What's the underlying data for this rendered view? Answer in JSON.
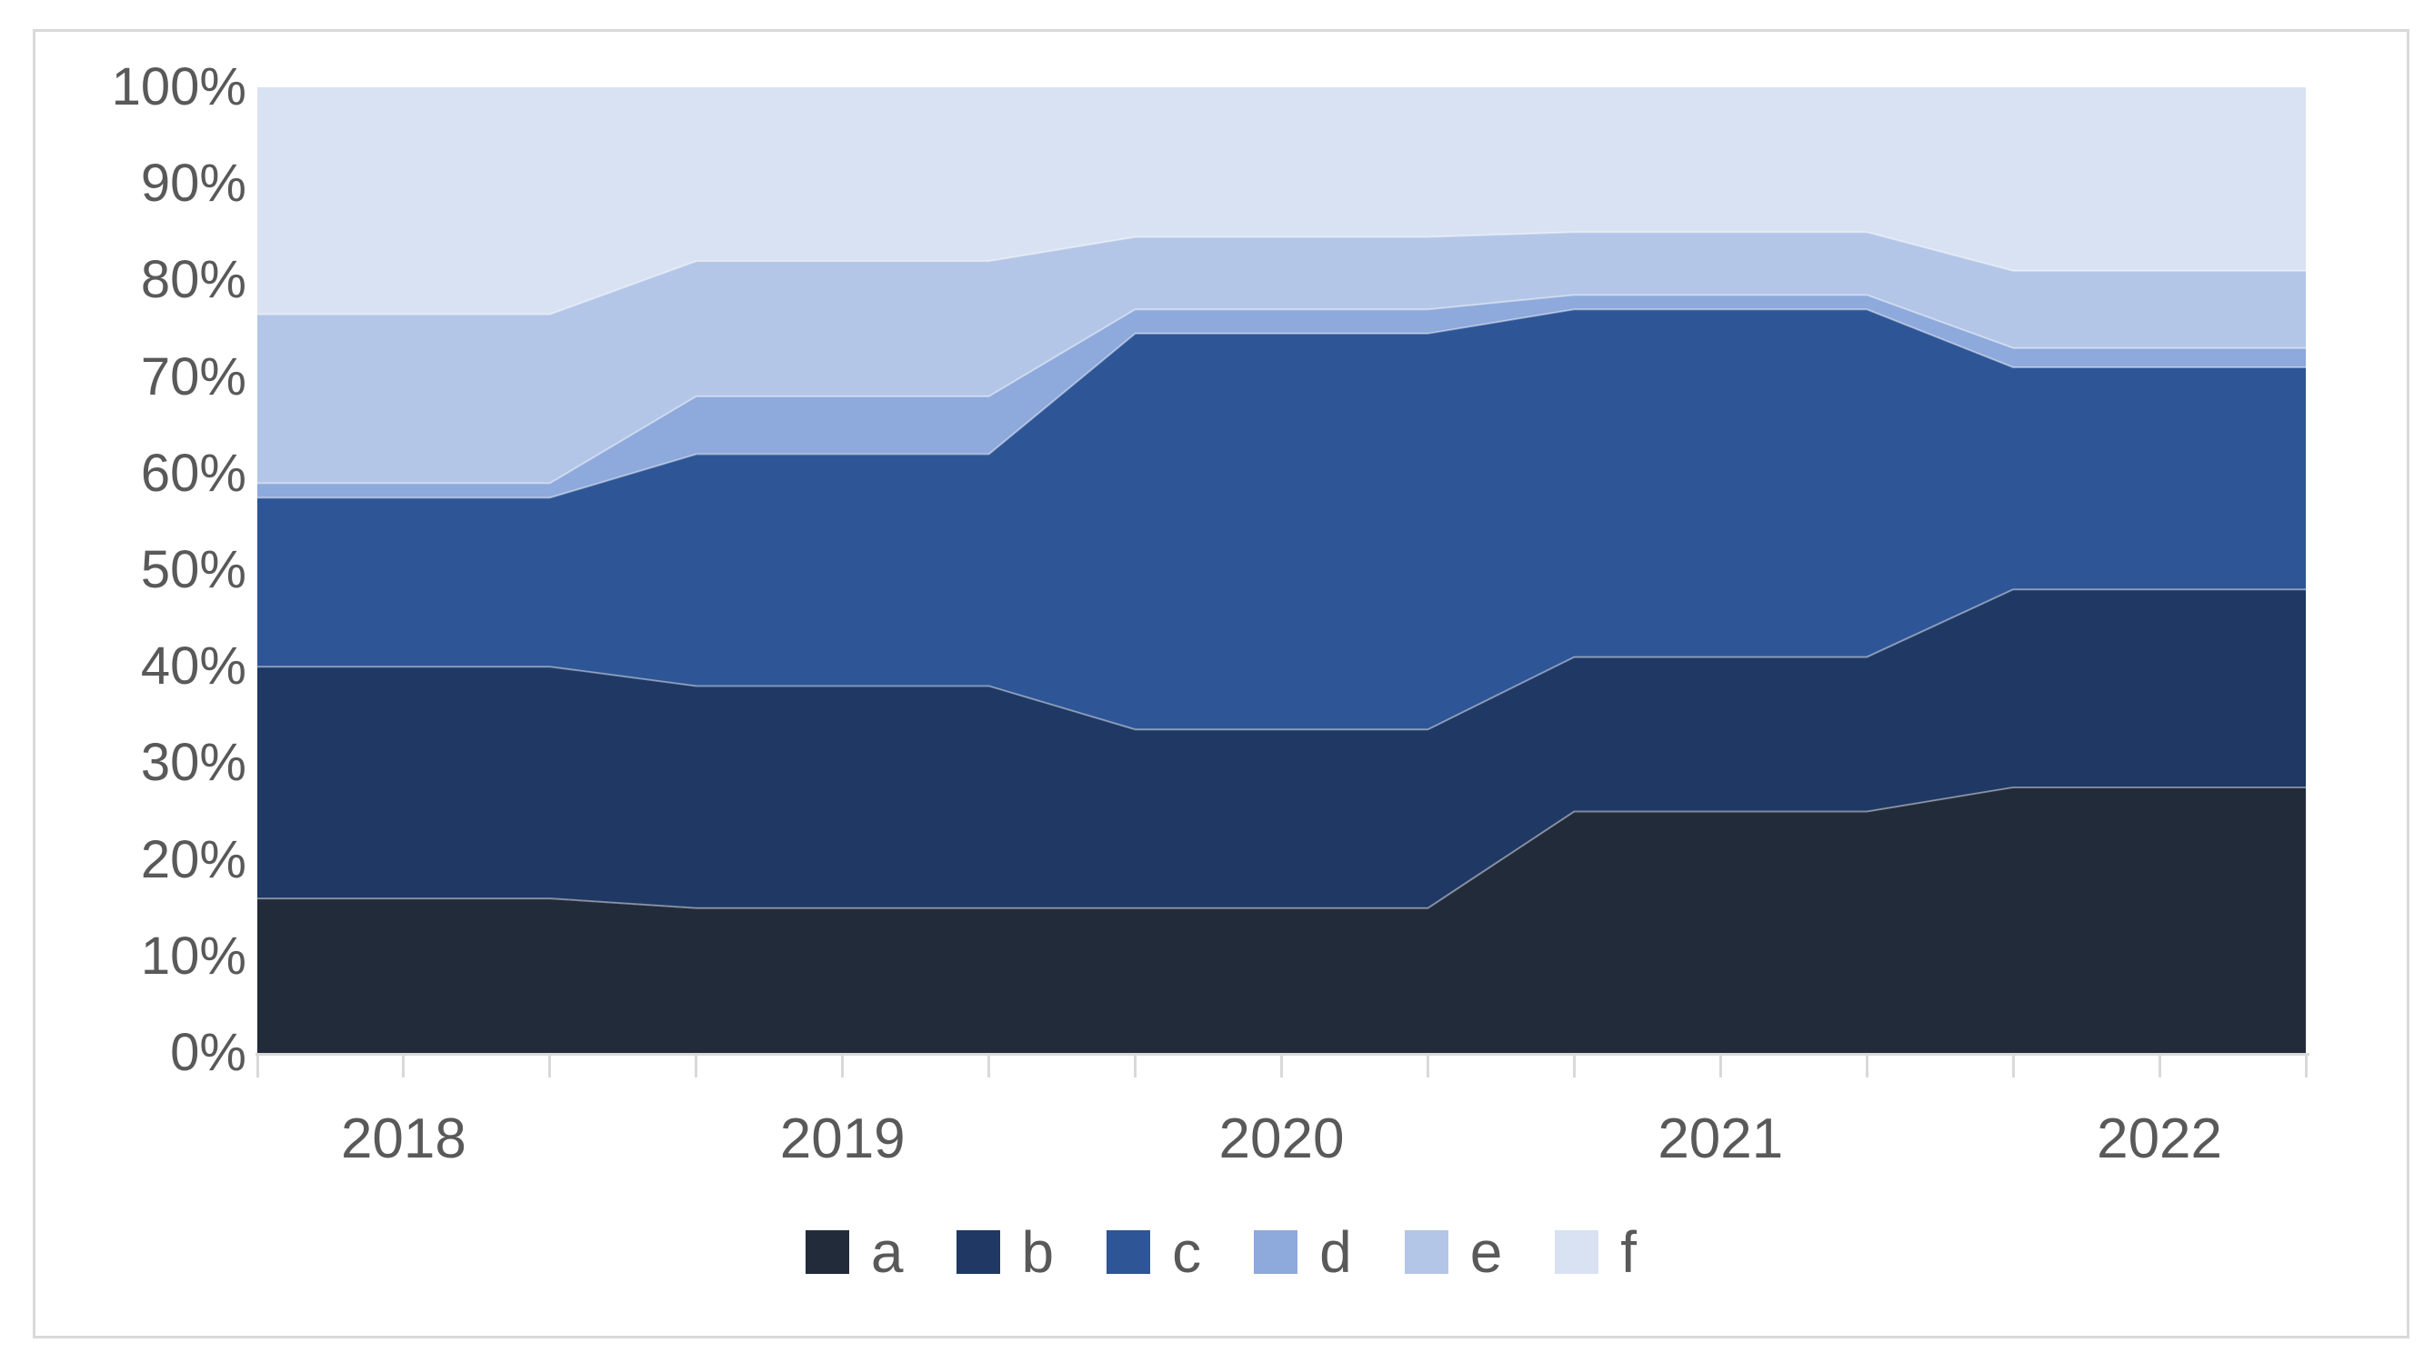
{
  "page": {
    "background": "#ffffff",
    "chart_border_color": "#D9D9D9"
  },
  "chart_data": {
    "type": "area",
    "stacking": "percent",
    "title": "",
    "grid": "off",
    "legend_position": "bottom",
    "x_axis": {
      "years": [
        "2018",
        "2019",
        "2020",
        "2021",
        "2022"
      ],
      "points_per_year": 3,
      "total_points": 15,
      "year_label_point_indices": [
        1,
        4,
        7,
        10,
        13
      ],
      "tick_color": "#D9D9D9",
      "label_color": "#595959"
    },
    "y_axis": {
      "min": 0,
      "max": 100,
      "tick_labels": [
        "100%",
        "90%",
        "80%",
        "70%",
        "60%",
        "50%",
        "40%",
        "30%",
        "20%",
        "10%",
        "0%"
      ],
      "label_color": "#595959"
    },
    "series": [
      {
        "name": "a",
        "color": "#222B3A",
        "values_pct": [
          16,
          16,
          16,
          15,
          15,
          15,
          15,
          15,
          15,
          25,
          25,
          25,
          27.5,
          27.5,
          27.5
        ]
      },
      {
        "name": "b",
        "color": "#1F3864",
        "values_pct": [
          24,
          24,
          24,
          23,
          23,
          23,
          18.5,
          18.5,
          18.5,
          16,
          16,
          16,
          20.5,
          20.5,
          20.5
        ]
      },
      {
        "name": "c",
        "color": "#2E5596",
        "values_pct": [
          17.5,
          17.5,
          17.5,
          24,
          24,
          24,
          41,
          41,
          41,
          36,
          36,
          36,
          23,
          23,
          23
        ]
      },
      {
        "name": "d",
        "color": "#8EA9DB",
        "values_pct": [
          1.5,
          1.5,
          1.5,
          6,
          6,
          6,
          2.5,
          2.5,
          2.5,
          1.5,
          1.5,
          1.5,
          2,
          2,
          2
        ]
      },
      {
        "name": "e",
        "color": "#B4C6E7",
        "values_pct": [
          17.5,
          17.5,
          17.5,
          14,
          14,
          14,
          7.5,
          7.5,
          7.5,
          6.5,
          6.5,
          6.5,
          8,
          8,
          8
        ]
      },
      {
        "name": "f",
        "color": "#D9E2F2",
        "values_pct": [
          23.5,
          23.5,
          23.5,
          18,
          18,
          18,
          15.5,
          15.5,
          15.5,
          15,
          15,
          15,
          19,
          19,
          19
        ]
      }
    ],
    "annotations": []
  }
}
